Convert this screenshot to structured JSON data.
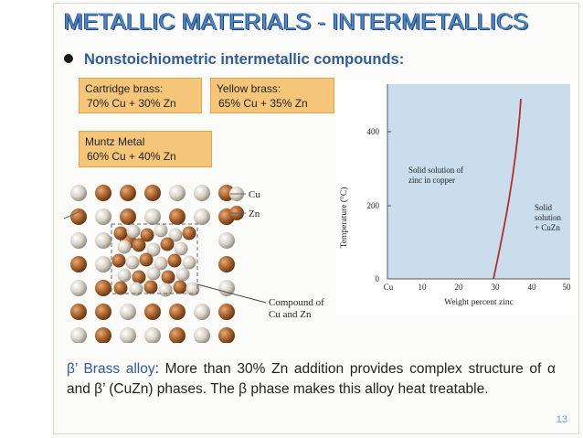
{
  "slide": {
    "title": "METALLIC MATERIALS - INTERMETALLICS",
    "subtitle": "Nonstoichiometric intermetallic compounds:",
    "page_number": "13"
  },
  "notes": {
    "cartridge": {
      "name": "Cartridge brass:",
      "composition": "70% Cu + 30% Zn"
    },
    "yellow": {
      "name": "Yellow brass:",
      "composition": "65% Cu + 35% Zn"
    },
    "muntz": {
      "name": "Muntz Metal",
      "composition": "60% Cu + 40% Zn"
    }
  },
  "structure_figure": {
    "legend_cu": "Cu",
    "legend_zn": "Zn",
    "compound_label_line1": "Compound of",
    "compound_label_line2": "Cu and Zn"
  },
  "graph": {
    "y_axis_label": "Temperature (°C)",
    "x_axis_label": "Weight percent zinc",
    "x_ticks": [
      "Cu",
      "10",
      "20",
      "30",
      "40",
      "50"
    ],
    "y_ticks": [
      "0",
      "200",
      "400"
    ],
    "region1_line1": "Solid solution of",
    "region1_line2": "zinc in copper",
    "region2_line1": "Solid",
    "region2_line2": "solution",
    "region2_line3": "+ CuZn"
  },
  "bottom": {
    "highlight": "β’ Brass alloy",
    "rest": ": More than 30% Zn addition provides complex structure of α and β’ (CuZn) phases. The β phase makes this alloy heat treatable."
  },
  "colors": {
    "title": "#4a89cc",
    "subtitle": "#2f5c99",
    "note_fill": "#f5c579",
    "graph_bg": "#c9ddec",
    "cu_atom": "#a8622c",
    "zn_atom": "#d8d2c6"
  }
}
